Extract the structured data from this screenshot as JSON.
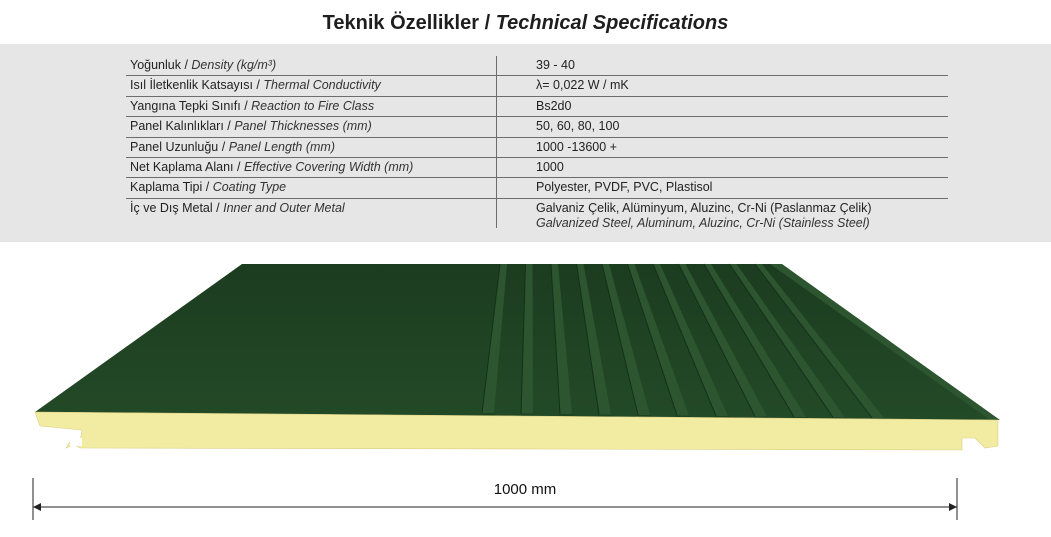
{
  "title": {
    "tr": "Teknik Özellikler / ",
    "en": "Technical Specifications"
  },
  "specs": [
    {
      "tr": "Yoğunluk / ",
      "en": "Density (kg/m³)",
      "value": "39 - 40"
    },
    {
      "tr": "Isıl İletkenlik Katsayısı / ",
      "en": "Thermal Conductivity",
      "value": "λ= 0,022 W / mK"
    },
    {
      "tr": "Yangına Tepki Sınıfı / ",
      "en": "Reaction to Fire Class",
      "value": "Bs2d0"
    },
    {
      "tr": "Panel Kalınlıkları / ",
      "en": "Panel Thicknesses (mm)",
      "value": "50, 60, 80, 100"
    },
    {
      "tr": "Panel Uzunluğu / ",
      "en": "Panel Length (mm)",
      "value": "1000 -13600 +"
    },
    {
      "tr": "Net Kaplama Alanı / ",
      "en": "Effective Covering Width (mm)",
      "value": "1000"
    },
    {
      "tr": "Kaplama Tipi / ",
      "en": "Coating Type",
      "value": "Polyester, PVDF, PVC, Plastisol"
    },
    {
      "tr": "İç ve Dış Metal / ",
      "en": "Inner and Outer Metal",
      "value": "Galvaniz Çelik, Alüminyum, Aluzinc, Cr-Ni (Paslanmaz Çelik)",
      "value_en": "Galvanized Steel, Aluminum, Aluzinc, Cr-Ni (Stainless Steel)"
    }
  ],
  "dimension": "1000 mm",
  "colors": {
    "panel_top": "#1f4424",
    "panel_dark": "#16331a",
    "core": "#f2eba2",
    "band": "#e6e6e6"
  }
}
